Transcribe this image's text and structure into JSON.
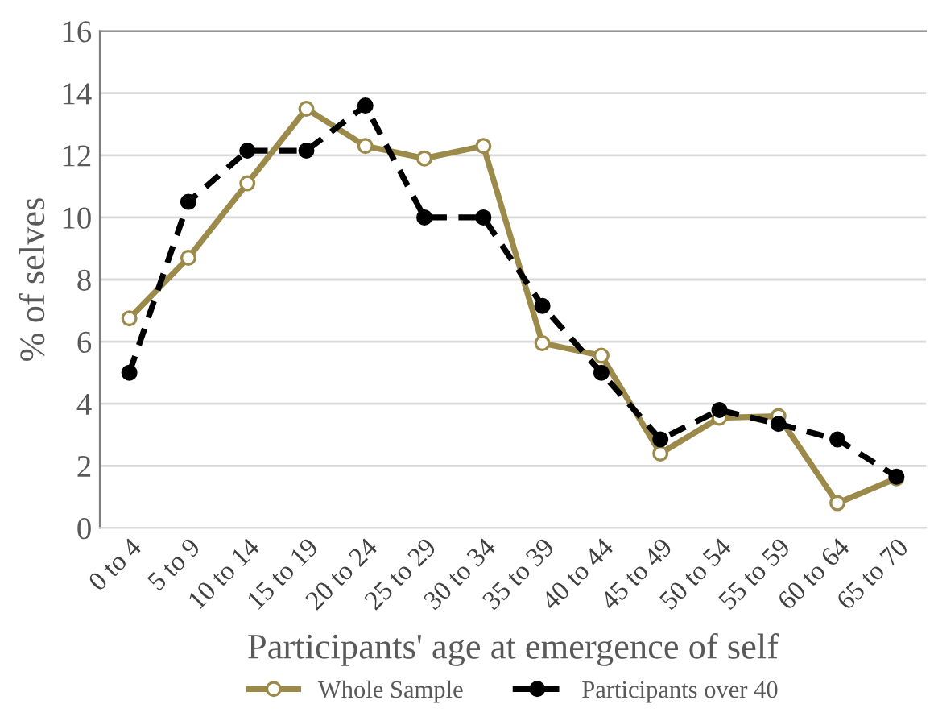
{
  "chart_data": {
    "type": "line",
    "xlabel": "Participants' age at emergence of self",
    "ylabel": "% of selves",
    "categories": [
      "0 to 4",
      "5 to 9",
      "10 to 14",
      "15 to 19",
      "20 to 24",
      "25 to 29",
      "30 to 34",
      "35 to 39",
      "40 to 44",
      "45 to 49",
      "50 to 54",
      "55 to 59",
      "60 to 64",
      "65 to 70"
    ],
    "series": [
      {
        "name": "Whole Sample",
        "color": "#9b8a4a",
        "values": [
          6.75,
          8.7,
          11.1,
          13.5,
          12.3,
          11.9,
          12.3,
          5.95,
          5.55,
          2.4,
          3.55,
          3.6,
          0.8,
          1.6
        ],
        "marker": "circle",
        "line_style": "solid"
      },
      {
        "name": "Participants over 40",
        "color": "#000000",
        "values": [
          5.0,
          10.5,
          12.15,
          12.15,
          13.6,
          10.0,
          10.0,
          7.15,
          5.0,
          2.85,
          3.8,
          3.35,
          2.85,
          1.65
        ],
        "marker": "circle",
        "line_style": "dashed"
      }
    ],
    "ylim": [
      0,
      16
    ],
    "yticks": [
      0,
      2,
      4,
      6,
      8,
      10,
      12,
      14,
      16
    ],
    "grid": "y",
    "legend": "bottom"
  }
}
